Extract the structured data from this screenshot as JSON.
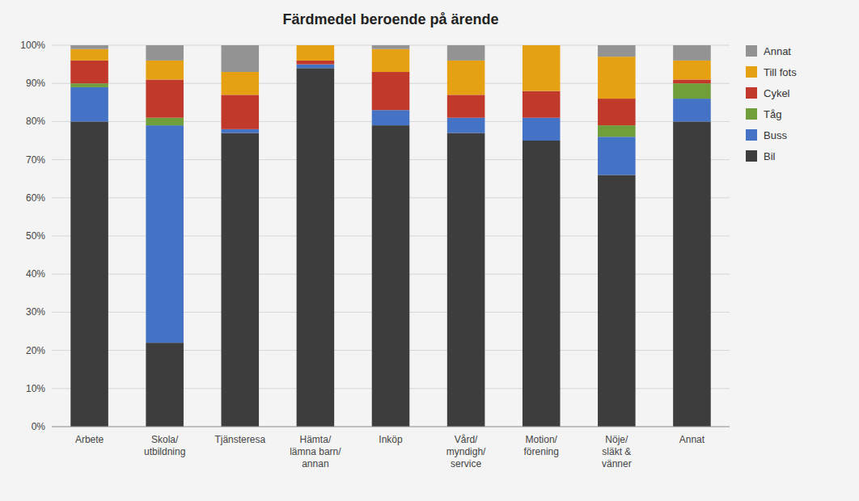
{
  "chart_data": {
    "type": "bar",
    "title": "Färdmedel beroende på ärende",
    "categories": [
      "Arbete",
      "Skola/\nutbildning",
      "Tjänsteresa",
      "Hämta/\nlämna barn/\nannan",
      "Inköp",
      "Vård/\nmyndigh/\nservice",
      "Motion/\nförening",
      "Nöje/\nsläkt &\nvänner",
      "Annat"
    ],
    "series": [
      {
        "name": "Bil",
        "color": "#3d3d3d",
        "values": [
          80,
          22,
          77,
          94,
          79,
          77,
          75,
          66,
          80
        ]
      },
      {
        "name": "Buss",
        "color": "#4472c4",
        "values": [
          9,
          57,
          1,
          1,
          4,
          4,
          6,
          10,
          6
        ]
      },
      {
        "name": "Tåg",
        "color": "#6f9e3a",
        "values": [
          1,
          2,
          0,
          0,
          0,
          0,
          0,
          3,
          4
        ]
      },
      {
        "name": "Cykel",
        "color": "#c0392b",
        "values": [
          6,
          10,
          9,
          1,
          10,
          6,
          7,
          7,
          1
        ]
      },
      {
        "name": "Till fots",
        "color": "#e5a112",
        "values": [
          3,
          5,
          6,
          4,
          6,
          9,
          12,
          11,
          5
        ]
      },
      {
        "name": "Annat",
        "color": "#939393",
        "values": [
          1,
          4,
          7,
          0,
          1,
          4,
          0,
          3,
          4
        ]
      }
    ],
    "stacked": true,
    "ylim": [
      0,
      100
    ],
    "yticks": [
      {
        "value": 0,
        "label": "0%"
      },
      {
        "value": 10,
        "label": "10%"
      },
      {
        "value": 20,
        "label": "20%"
      },
      {
        "value": 30,
        "label": "30%"
      },
      {
        "value": 40,
        "label": "40%"
      },
      {
        "value": 50,
        "label": "50%"
      },
      {
        "value": 60,
        "label": "60%"
      },
      {
        "value": 70,
        "label": "70%"
      },
      {
        "value": 80,
        "label": "80%"
      },
      {
        "value": 90,
        "label": "90%"
      },
      {
        "value": 100,
        "label": "100%"
      }
    ],
    "grid": true,
    "legend": "right"
  }
}
